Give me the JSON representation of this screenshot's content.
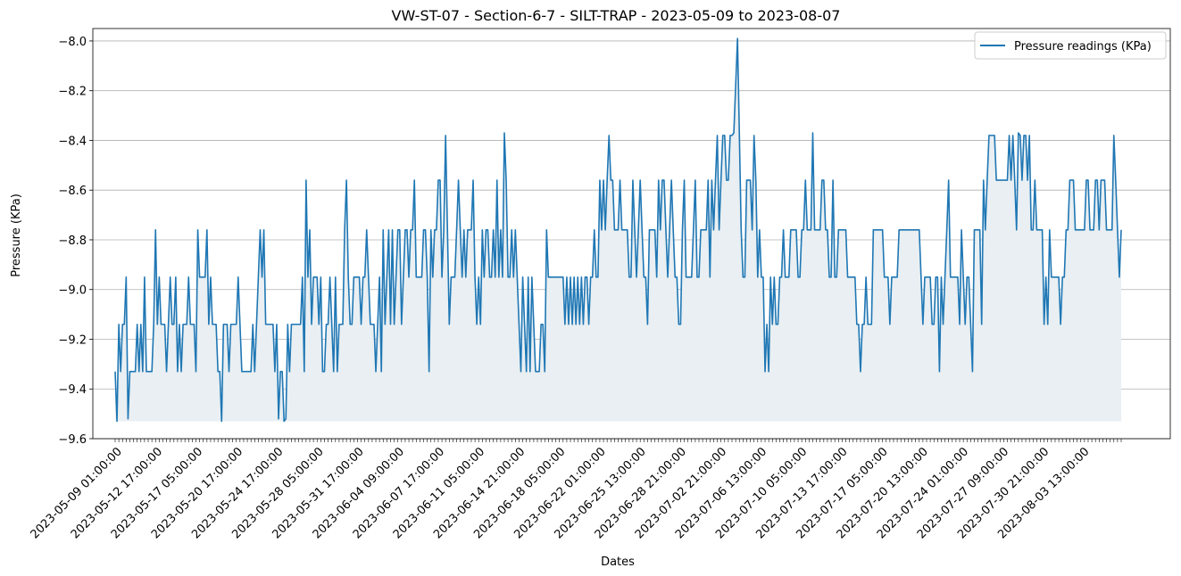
{
  "chart_data": {
    "type": "line",
    "title": "VW-ST-07 - Section-6-7 - SILT-TRAP - 2023-05-09 to 2023-08-07",
    "xlabel": "Dates",
    "ylabel": "Pressure (KPa)",
    "ylim": [
      -9.6,
      -7.95
    ],
    "y_ticks": [
      -8.0,
      -8.2,
      -8.4,
      -8.6,
      -8.8,
      -9.0,
      -9.2,
      -9.4,
      -9.6
    ],
    "y_tick_labels": [
      "−8.0",
      "−8.2",
      "−8.4",
      "−8.6",
      "−8.8",
      "−9.0",
      "−9.2",
      "−9.4",
      "−9.6"
    ],
    "x_tick_labels": [
      "2023-05-09 01:00:00",
      "2023-05-12 17:00:00",
      "2023-05-17 05:00:00",
      "2023-05-20 17:00:00",
      "2023-05-24 17:00:00",
      "2023-05-28 05:00:00",
      "2023-05-31 17:00:00",
      "2023-06-04 09:00:00",
      "2023-06-07 17:00:00",
      "2023-06-11 05:00:00",
      "2023-06-14 21:00:00",
      "2023-06-18 05:00:00",
      "2023-06-22 01:00:00",
      "2023-06-25 13:00:00",
      "2023-06-28 21:00:00",
      "2023-07-02 21:00:00",
      "2023-07-06 13:00:00",
      "2023-07-10 05:00:00",
      "2023-07-13 17:00:00",
      "2023-07-17 05:00:00",
      "2023-07-20 13:00:00",
      "2023-07-24 01:00:00",
      "2023-07-27 09:00:00",
      "2023-07-30 21:00:00",
      "2023-08-03 13:00:00"
    ],
    "grid": "horizontal",
    "legend_position": "top-right",
    "fill_baseline": -9.53,
    "series": [
      {
        "name": "Pressure readings (KPa)",
        "color": "#1f77b4",
        "fill_color": "#e9eff2",
        "values": [
          -9.33,
          -9.53,
          -9.14,
          -9.33,
          -9.14,
          -9.14,
          -8.95,
          -9.52,
          -9.33,
          -9.33,
          -9.33,
          -9.33,
          -9.14,
          -9.33,
          -9.14,
          -9.33,
          -8.95,
          -9.33,
          -9.33,
          -9.33,
          -9.33,
          -9.14,
          -8.76,
          -9.14,
          -8.95,
          -9.14,
          -9.14,
          -9.14,
          -9.33,
          -9.14,
          -8.95,
          -9.14,
          -9.14,
          -8.95,
          -9.33,
          -9.14,
          -9.33,
          -9.14,
          -9.14,
          -9.14,
          -8.95,
          -9.14,
          -9.14,
          -9.14,
          -9.33,
          -8.76,
          -8.95,
          -8.95,
          -8.95,
          -8.95,
          -8.76,
          -9.14,
          -8.95,
          -9.14,
          -9.14,
          -9.14,
          -9.33,
          -9.33,
          -9.53,
          -9.14,
          -9.14,
          -9.14,
          -9.33,
          -9.14,
          -9.14,
          -9.14,
          -9.14,
          -8.95,
          -9.14,
          -9.33,
          -9.33,
          -9.33,
          -9.33,
          -9.33,
          -9.33,
          -9.14,
          -9.33,
          -9.14,
          -8.95,
          -8.76,
          -8.95,
          -8.76,
          -9.14,
          -9.14,
          -9.14,
          -9.14,
          -9.14,
          -9.33,
          -9.14,
          -9.52,
          -9.33,
          -9.33,
          -9.53,
          -9.52,
          -9.14,
          -9.33,
          -9.14,
          -9.14,
          -9.14,
          -9.14,
          -9.14,
          -9.14,
          -8.95,
          -9.33,
          -8.56,
          -8.95,
          -8.76,
          -9.14,
          -8.95,
          -8.95,
          -8.95,
          -9.14,
          -8.95,
          -9.33,
          -9.33,
          -9.14,
          -9.14,
          -8.95,
          -9.14,
          -9.33,
          -8.95,
          -9.33,
          -9.14,
          -9.14,
          -9.14,
          -8.76,
          -8.56,
          -8.95,
          -9.14,
          -9.14,
          -8.95,
          -8.95,
          -8.95,
          -8.95,
          -9.14,
          -8.95,
          -8.95,
          -8.76,
          -8.95,
          -9.14,
          -9.14,
          -9.14,
          -9.33,
          -9.14,
          -8.95,
          -9.33,
          -8.76,
          -9.14,
          -8.95,
          -8.76,
          -9.14,
          -8.76,
          -9.14,
          -8.95,
          -8.76,
          -8.76,
          -9.14,
          -8.95,
          -8.76,
          -8.76,
          -8.95,
          -8.76,
          -8.76,
          -8.56,
          -8.95,
          -8.95,
          -8.95,
          -8.95,
          -8.76,
          -8.76,
          -8.95,
          -9.33,
          -8.76,
          -8.95,
          -8.76,
          -8.76,
          -8.56,
          -8.56,
          -8.95,
          -8.76,
          -8.38,
          -8.76,
          -9.14,
          -8.95,
          -8.95,
          -8.95,
          -8.76,
          -8.56,
          -8.76,
          -8.95,
          -8.76,
          -8.95,
          -8.76,
          -8.76,
          -8.76,
          -8.56,
          -8.95,
          -9.14,
          -8.95,
          -9.14,
          -8.76,
          -8.95,
          -8.76,
          -8.76,
          -8.95,
          -8.95,
          -8.76,
          -8.95,
          -8.56,
          -8.95,
          -8.76,
          -8.95,
          -8.37,
          -8.56,
          -8.95,
          -8.95,
          -8.76,
          -8.95,
          -8.76,
          -8.95,
          -9.14,
          -9.33,
          -8.95,
          -9.14,
          -9.33,
          -8.95,
          -9.33,
          -8.95,
          -9.14,
          -9.33,
          -9.33,
          -9.33,
          -9.14,
          -9.14,
          -9.33,
          -8.76,
          -8.95,
          -8.95,
          -8.95,
          -8.95,
          -8.95,
          -8.95,
          -8.95,
          -8.95,
          -8.95,
          -9.14,
          -8.95,
          -9.14,
          -8.95,
          -9.14,
          -8.95,
          -9.14,
          -8.95,
          -9.14,
          -8.95,
          -9.14,
          -8.95,
          -8.95,
          -9.14,
          -8.95,
          -8.95,
          -8.76,
          -8.95,
          -8.95,
          -8.56,
          -8.76,
          -8.56,
          -8.76,
          -8.56,
          -8.38,
          -8.56,
          -8.56,
          -8.76,
          -8.76,
          -8.76,
          -8.56,
          -8.76,
          -8.76,
          -8.76,
          -8.76,
          -8.95,
          -8.95,
          -8.56,
          -8.76,
          -8.95,
          -8.76,
          -8.56,
          -8.76,
          -8.95,
          -8.95,
          -9.14,
          -8.76,
          -8.76,
          -8.76,
          -8.76,
          -8.95,
          -8.56,
          -8.76,
          -8.56,
          -8.56,
          -8.76,
          -8.95,
          -8.76,
          -8.56,
          -8.76,
          -8.95,
          -8.95,
          -9.14,
          -9.14,
          -8.76,
          -8.56,
          -8.95,
          -8.95,
          -8.95,
          -8.95,
          -8.76,
          -8.56,
          -8.95,
          -8.95,
          -8.76,
          -8.76,
          -8.76,
          -8.76,
          -8.56,
          -8.95,
          -8.56,
          -8.76,
          -8.56,
          -8.38,
          -8.76,
          -8.56,
          -8.38,
          -8.38,
          -8.56,
          -8.56,
          -8.38,
          -8.38,
          -8.37,
          -8.18,
          -7.99,
          -8.37,
          -8.76,
          -8.95,
          -8.95,
          -8.56,
          -8.56,
          -8.56,
          -8.76,
          -8.38,
          -8.56,
          -8.95,
          -8.76,
          -8.95,
          -8.95,
          -9.33,
          -9.14,
          -9.33,
          -8.95,
          -9.14,
          -8.95,
          -9.14,
          -9.14,
          -8.95,
          -8.95,
          -8.76,
          -8.95,
          -8.95,
          -8.95,
          -8.76,
          -8.76,
          -8.76,
          -8.76,
          -8.95,
          -8.95,
          -8.76,
          -8.76,
          -8.56,
          -8.76,
          -8.76,
          -8.76,
          -8.37,
          -8.76,
          -8.76,
          -8.76,
          -8.76,
          -8.56,
          -8.56,
          -8.76,
          -8.76,
          -8.95,
          -8.95,
          -8.56,
          -8.95,
          -8.95,
          -8.76,
          -8.76,
          -8.76,
          -8.76,
          -8.76,
          -8.95,
          -8.95,
          -8.95,
          -8.95,
          -8.95,
          -9.14,
          -9.14,
          -9.33,
          -9.14,
          -9.14,
          -8.95,
          -9.14,
          -9.14,
          -9.14,
          -8.76,
          -8.76,
          -8.76,
          -8.76,
          -8.76,
          -8.76,
          -8.95,
          -8.95,
          -8.95,
          -9.14,
          -8.95,
          -8.95,
          -8.95,
          -8.95,
          -8.76,
          -8.76,
          -8.76,
          -8.76,
          -8.76,
          -8.76,
          -8.76,
          -8.76,
          -8.76,
          -8.76,
          -8.76,
          -8.76,
          -8.95,
          -9.14,
          -8.95,
          -8.95,
          -8.95,
          -8.95,
          -9.14,
          -9.14,
          -8.95,
          -8.95,
          -9.33,
          -8.95,
          -9.14,
          -8.95,
          -8.76,
          -8.56,
          -8.95,
          -8.95,
          -8.95,
          -8.95,
          -8.95,
          -9.14,
          -8.76,
          -8.95,
          -9.14,
          -8.95,
          -8.95,
          -9.14,
          -9.33,
          -8.76,
          -8.76,
          -8.76,
          -8.76,
          -9.14,
          -8.56,
          -8.76,
          -8.56,
          -8.38,
          -8.38,
          -8.38,
          -8.38,
          -8.56,
          -8.56,
          -8.56,
          -8.56,
          -8.56,
          -8.56,
          -8.56,
          -8.38,
          -8.56,
          -8.38,
          -8.56,
          -8.76,
          -8.37,
          -8.38,
          -8.56,
          -8.38,
          -8.38,
          -8.56,
          -8.38,
          -8.76,
          -8.76,
          -8.56,
          -8.76,
          -8.76,
          -8.76,
          -8.76,
          -9.14,
          -8.95,
          -9.14,
          -8.76,
          -8.95,
          -8.95,
          -8.95,
          -8.95,
          -8.95,
          -9.14,
          -8.95,
          -8.95,
          -8.76,
          -8.76,
          -8.56,
          -8.56,
          -8.56,
          -8.76,
          -8.76,
          -8.76,
          -8.76,
          -8.76,
          -8.76,
          -8.56,
          -8.56,
          -8.76,
          -8.76,
          -8.76,
          -8.56,
          -8.56,
          -8.76,
          -8.56,
          -8.56,
          -8.56,
          -8.76,
          -8.76,
          -8.76,
          -8.76,
          -8.38,
          -8.56,
          -8.76,
          -8.95,
          -8.76
        ]
      }
    ]
  }
}
